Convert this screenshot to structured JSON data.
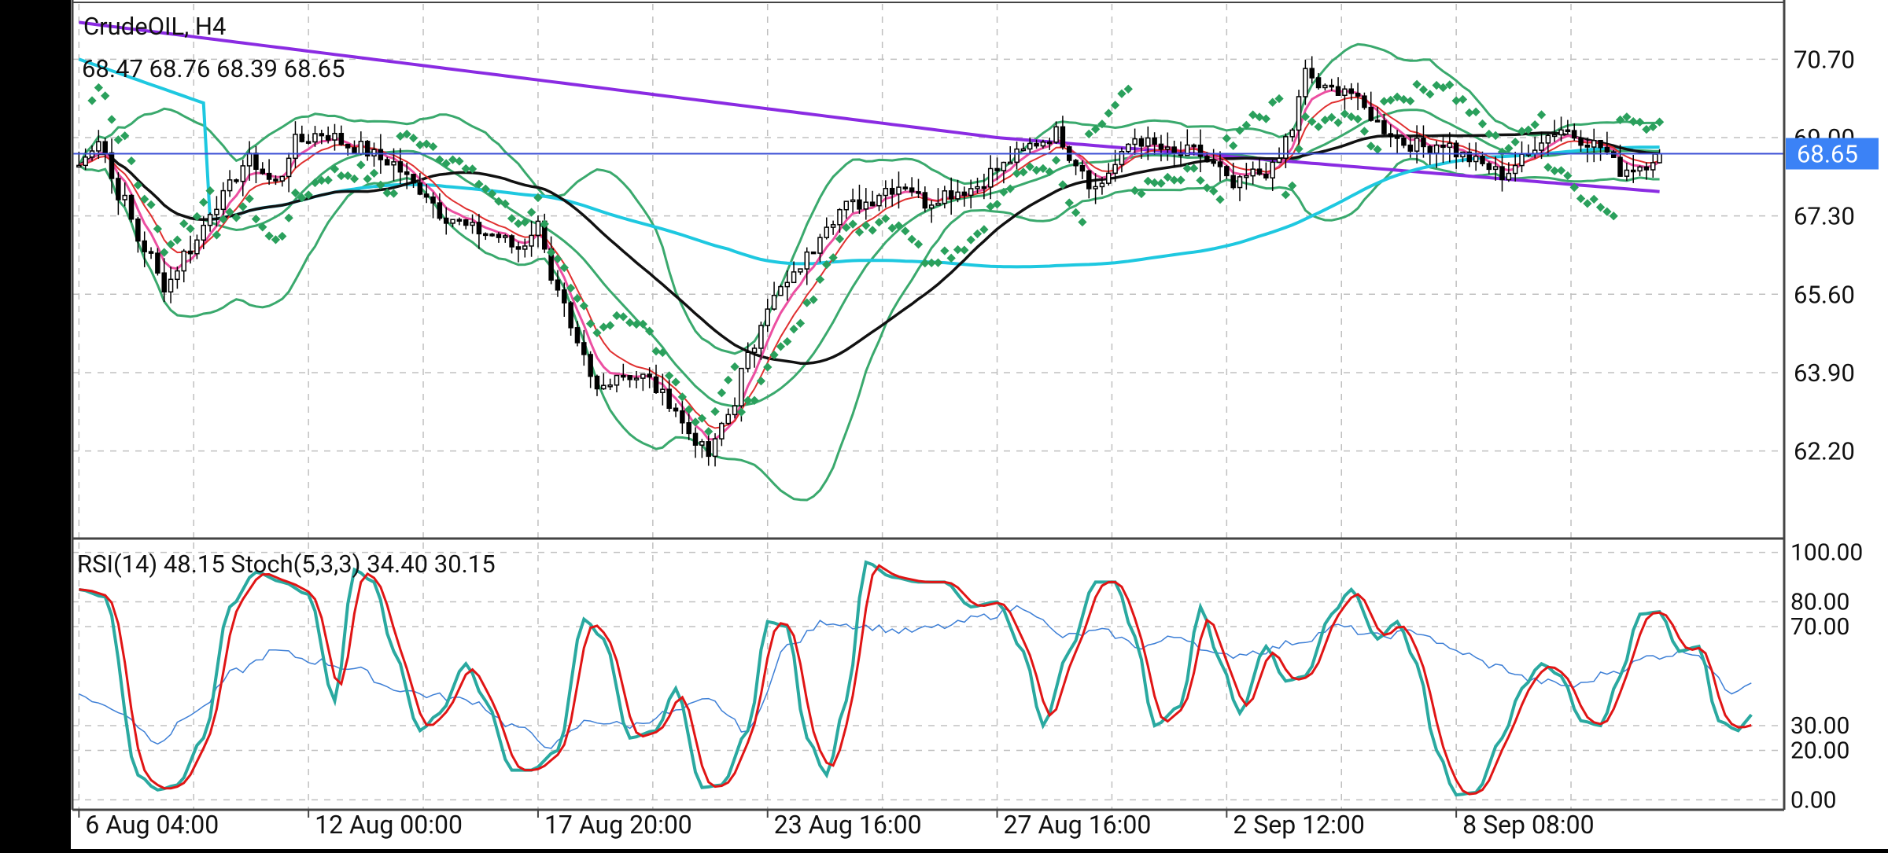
{
  "theme": {
    "background": "#ffffff",
    "left_bar": "#000000",
    "grid": "#c0c0c0",
    "axis": "#444444",
    "text": "#111111",
    "price_line": "#3b4fd6",
    "price_tag_bg": "#3b82f6",
    "price_tag_text": "#ffffff",
    "bull_candle": "#ffffff",
    "bear_candle": "#000000",
    "bollinger": "#3aa96d",
    "sar": "#2aa05c",
    "sma_slow_purple": "#8a2be2",
    "sma_cyan": "#1ec8e0",
    "sma_black": "#111111",
    "ema_fast_pink": "#ec4fa1",
    "ema_fast_red": "#e03030",
    "rsi_line": "#3d7fd6",
    "stoch_main": "#2aa9a0",
    "stoch_signal": "#e01515"
  },
  "chart_data": [
    {
      "type": "line",
      "title": "CrudeOIL, H4",
      "ohlc_label": "68.47 68.76 68.39 68.65",
      "current_price": 68.65,
      "current_price_label": "68.65",
      "ylim": [
        60.3,
        71.9
      ],
      "y_ticks": [
        62.2,
        63.9,
        65.6,
        67.3,
        69.0,
        70.7
      ],
      "y_tick_labels": [
        "62.20",
        "63.90",
        "65.60",
        "67.30",
        "69.00",
        "70.70"
      ],
      "x_tick_labels": [
        "6 Aug 04:00",
        "12 Aug 00:00",
        "17 Aug 20:00",
        "23 Aug 16:00",
        "27 Aug 16:00",
        "2 Sep 12:00",
        "8 Sep 08:00"
      ],
      "x_tick_index": [
        0,
        35,
        70,
        105,
        140,
        175,
        210
      ],
      "xlim": [
        -1,
        260
      ],
      "price_anchors": [
        [
          0,
          68.4
        ],
        [
          3,
          69.0
        ],
        [
          6,
          67.8
        ],
        [
          10,
          66.6
        ],
        [
          13,
          65.8
        ],
        [
          17,
          66.6
        ],
        [
          21,
          67.6
        ],
        [
          26,
          68.5
        ],
        [
          30,
          68.0
        ],
        [
          33,
          68.9
        ],
        [
          37,
          69.1
        ],
        [
          42,
          68.8
        ],
        [
          47,
          68.5
        ],
        [
          52,
          67.9
        ],
        [
          56,
          67.3
        ],
        [
          60,
          67.0
        ],
        [
          63,
          66.9
        ],
        [
          67,
          66.6
        ],
        [
          70,
          67.1
        ],
        [
          73,
          65.6
        ],
        [
          76,
          64.4
        ],
        [
          79,
          63.5
        ],
        [
          82,
          63.9
        ],
        [
          86,
          63.8
        ],
        [
          90,
          63.3
        ],
        [
          93,
          62.6
        ],
        [
          96,
          62.1
        ],
        [
          99,
          63.0
        ],
        [
          102,
          64.2
        ],
        [
          105,
          65.4
        ],
        [
          108,
          65.8
        ],
        [
          111,
          66.4
        ],
        [
          114,
          67.2
        ],
        [
          117,
          67.5
        ],
        [
          120,
          67.6
        ],
        [
          123,
          67.9
        ],
        [
          126,
          68.0
        ],
        [
          129,
          67.6
        ],
        [
          132,
          67.8
        ],
        [
          136,
          67.9
        ],
        [
          140,
          68.3
        ],
        [
          143,
          68.6
        ],
        [
          146,
          68.9
        ],
        [
          149,
          69.1
        ],
        [
          152,
          68.5
        ],
        [
          155,
          67.9
        ],
        [
          158,
          68.4
        ],
        [
          161,
          69.0
        ],
        [
          164,
          68.8
        ],
        [
          167,
          68.6
        ],
        [
          170,
          68.7
        ],
        [
          173,
          68.4
        ],
        [
          176,
          67.9
        ],
        [
          179,
          68.2
        ],
        [
          182,
          68.3
        ],
        [
          185,
          69.2
        ],
        [
          187,
          70.4
        ],
        [
          190,
          70.0
        ],
        [
          193,
          70.1
        ],
        [
          196,
          69.6
        ],
        [
          199,
          69.2
        ],
        [
          202,
          68.9
        ],
        [
          205,
          68.8
        ],
        [
          208,
          68.9
        ],
        [
          211,
          68.6
        ],
        [
          214,
          68.4
        ],
        [
          217,
          68.2
        ],
        [
          220,
          68.5
        ],
        [
          223,
          69.0
        ],
        [
          226,
          69.2
        ],
        [
          229,
          69.0
        ],
        [
          232,
          68.8
        ],
        [
          235,
          68.3
        ],
        [
          238,
          68.4
        ],
        [
          241,
          68.65
        ]
      ],
      "overlays": [
        "bollinger",
        "parabolic-sar",
        "sma-purple",
        "sma-cyan",
        "sma-black",
        "ema-pink",
        "ema-red"
      ]
    },
    {
      "type": "line",
      "title": "RSI(14) 48.15 Stoch(5,3,3) 34.40 30.15",
      "ylim": [
        -4,
        104
      ],
      "y_ticks": [
        0,
        20,
        30,
        70,
        80,
        100
      ],
      "y_tick_labels": [
        "0.00",
        "20.00",
        "30.00",
        "70.00",
        "80.00",
        "100.00"
      ],
      "rsi_last": 48.15,
      "stoch_main_last": 34.4,
      "stoch_signal_last": 30.15,
      "stoch_anchors": [
        [
          0,
          85
        ],
        [
          4,
          82
        ],
        [
          9,
          10
        ],
        [
          12,
          4
        ],
        [
          15,
          6
        ],
        [
          19,
          25
        ],
        [
          23,
          78
        ],
        [
          27,
          92
        ],
        [
          31,
          88
        ],
        [
          35,
          83
        ],
        [
          39,
          40
        ],
        [
          42,
          93
        ],
        [
          45,
          88
        ],
        [
          48,
          60
        ],
        [
          52,
          28
        ],
        [
          55,
          35
        ],
        [
          59,
          55
        ],
        [
          62,
          40
        ],
        [
          66,
          12
        ],
        [
          69,
          12
        ],
        [
          73,
          20
        ],
        [
          77,
          73
        ],
        [
          80,
          65
        ],
        [
          84,
          25
        ],
        [
          88,
          28
        ],
        [
          91,
          45
        ],
        [
          95,
          5
        ],
        [
          98,
          6
        ],
        [
          102,
          28
        ],
        [
          105,
          72
        ],
        [
          108,
          70
        ],
        [
          111,
          25
        ],
        [
          114,
          10
        ],
        [
          117,
          40
        ],
        [
          120,
          96
        ],
        [
          124,
          90
        ],
        [
          128,
          88
        ],
        [
          132,
          88
        ],
        [
          136,
          78
        ],
        [
          140,
          80
        ],
        [
          144,
          60
        ],
        [
          147,
          30
        ],
        [
          151,
          60
        ],
        [
          155,
          88
        ],
        [
          158,
          88
        ],
        [
          161,
          66
        ],
        [
          164,
          30
        ],
        [
          168,
          38
        ],
        [
          171,
          78
        ],
        [
          174,
          56
        ],
        [
          177,
          35
        ],
        [
          181,
          62
        ],
        [
          184,
          48
        ],
        [
          187,
          50
        ],
        [
          191,
          75
        ],
        [
          194,
          85
        ],
        [
          198,
          65
        ],
        [
          201,
          72
        ],
        [
          204,
          55
        ],
        [
          207,
          20
        ],
        [
          210,
          2
        ],
        [
          213,
          3
        ],
        [
          217,
          25
        ],
        [
          220,
          45
        ],
        [
          223,
          55
        ],
        [
          226,
          50
        ],
        [
          229,
          32
        ],
        [
          232,
          30
        ],
        [
          235,
          50
        ],
        [
          238,
          75
        ],
        [
          241,
          76
        ],
        [
          244,
          60
        ],
        [
          247,
          62
        ],
        [
          250,
          32
        ],
        [
          253,
          28
        ],
        [
          255,
          34.4
        ]
      ],
      "rsi_anchors": [
        [
          0,
          42
        ],
        [
          6,
          36
        ],
        [
          12,
          24
        ],
        [
          18,
          36
        ],
        [
          24,
          52
        ],
        [
          30,
          60
        ],
        [
          36,
          56
        ],
        [
          42,
          53
        ],
        [
          48,
          45
        ],
        [
          54,
          42
        ],
        [
          60,
          40
        ],
        [
          66,
          30
        ],
        [
          72,
          22
        ],
        [
          78,
          32
        ],
        [
          84,
          30
        ],
        [
          90,
          35
        ],
        [
          96,
          40
        ],
        [
          102,
          28
        ],
        [
          108,
          62
        ],
        [
          114,
          72
        ],
        [
          120,
          70
        ],
        [
          126,
          68
        ],
        [
          132,
          70
        ],
        [
          138,
          74
        ],
        [
          144,
          78
        ],
        [
          150,
          66
        ],
        [
          156,
          68
        ],
        [
          162,
          62
        ],
        [
          168,
          66
        ],
        [
          174,
          58
        ],
        [
          180,
          60
        ],
        [
          186,
          64
        ],
        [
          192,
          70
        ],
        [
          198,
          66
        ],
        [
          204,
          68
        ],
        [
          210,
          60
        ],
        [
          216,
          54
        ],
        [
          222,
          48
        ],
        [
          228,
          46
        ],
        [
          234,
          52
        ],
        [
          240,
          58
        ],
        [
          246,
          60
        ],
        [
          252,
          44
        ],
        [
          255,
          48.15
        ]
      ]
    }
  ]
}
